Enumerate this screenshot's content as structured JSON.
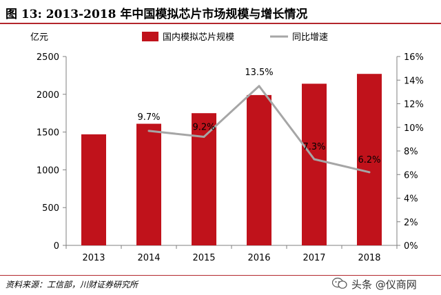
{
  "title": "图 13:  2013-2018 年中国模拟芯片市场规模与增长情况",
  "source": "资料来源：工信部，川财证券研究所",
  "watermark": {
    "text": "头条 @仪商网"
  },
  "colors": {
    "bar": "#c0121b",
    "line": "#a6a6a6",
    "accent": "#b3262c"
  },
  "chart_data": {
    "type": "bar",
    "title": "",
    "y_unit_label": "亿元",
    "categories": [
      "2013",
      "2014",
      "2015",
      "2016",
      "2017",
      "2018"
    ],
    "series": [
      {
        "name": "国内模拟芯片规模",
        "type": "bar",
        "axis": "left",
        "values": [
          1470,
          1610,
          1750,
          1990,
          2140,
          2270
        ]
      },
      {
        "name": "同比增速",
        "type": "line",
        "axis": "right",
        "values": [
          null,
          9.7,
          9.2,
          13.5,
          7.3,
          6.2
        ],
        "data_labels": [
          "",
          "9.7%",
          "9.2%",
          "13.5%",
          "7.3%",
          "6.2%"
        ]
      }
    ],
    "left_axis": {
      "ylim": [
        0,
        2500
      ],
      "ticks": [
        "0",
        "500",
        "1000",
        "1500",
        "2000",
        "2500"
      ],
      "tick_values": [
        0,
        500,
        1000,
        1500,
        2000,
        2500
      ]
    },
    "right_axis": {
      "ylim": [
        0,
        16
      ],
      "ticks": [
        "0%",
        "2%",
        "4%",
        "6%",
        "8%",
        "10%",
        "12%",
        "14%",
        "16%"
      ],
      "tick_values": [
        0,
        2,
        4,
        6,
        8,
        10,
        12,
        14,
        16
      ]
    },
    "legend_position": "top-center",
    "grid": false
  }
}
